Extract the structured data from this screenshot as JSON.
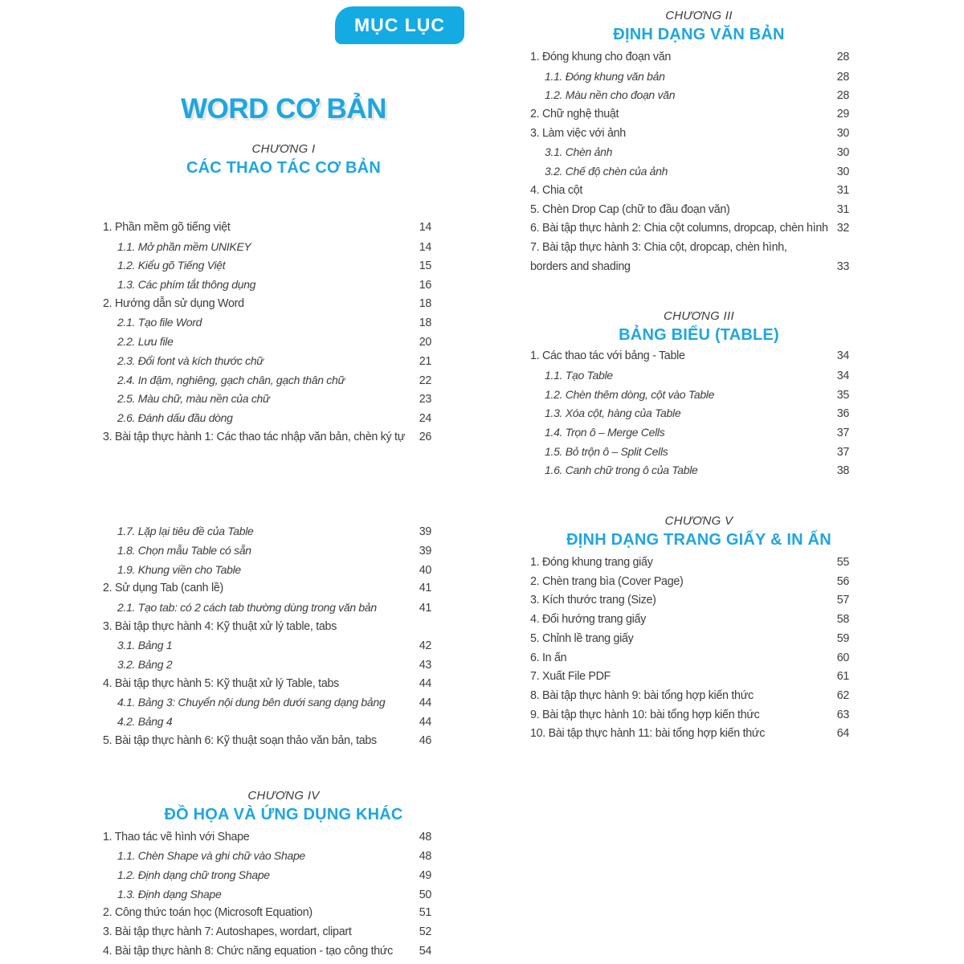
{
  "badge": {
    "label": "MỤC LỤC"
  },
  "title": "WORD CƠ BẢN",
  "colors": {
    "accent": "#1fa6de",
    "badge_bg": "#14abe3",
    "text": "#3d3d3d"
  },
  "sections": [
    {
      "id": "ch1",
      "column": "left",
      "chapter": "CHƯƠNG I",
      "heading": "CÁC THAO TÁC CƠ BẢN",
      "items": [
        {
          "level": 1,
          "label": "1. Phần mềm gõ tiếng việt",
          "page": "14"
        },
        {
          "level": 2,
          "label": "1.1. Mở phần mềm UNIKEY",
          "page": "14"
        },
        {
          "level": 2,
          "label": "1.2. Kiểu gõ Tiếng Việt",
          "page": "15"
        },
        {
          "level": 2,
          "label": "1.3. Các phím tắt thông dụng",
          "page": "16"
        },
        {
          "level": 1,
          "label": "2. Hướng dẫn sử dụng Word",
          "page": "18"
        },
        {
          "level": 2,
          "label": "2.1. Tạo file Word",
          "page": "18"
        },
        {
          "level": 2,
          "label": "2.2. Lưu file",
          "page": "20"
        },
        {
          "level": 2,
          "label": "2.3. Đổi font và kích thước chữ",
          "page": "21"
        },
        {
          "level": 2,
          "label": "2.4. In đậm, nghiêng, gạch chân, gạch thân chữ",
          "page": "22"
        },
        {
          "level": 2,
          "label": "2.5. Màu chữ, màu nền của chữ",
          "page": "23"
        },
        {
          "level": 2,
          "label": "2.6. Đánh dấu đầu dòng",
          "page": "24"
        },
        {
          "level": 1,
          "label": "3. Bài tập thực hành 1: Các thao tác nhập văn bản, chèn ký tự",
          "page": "26"
        }
      ]
    },
    {
      "id": "ch1b",
      "column": "left",
      "chapter": "",
      "heading": "",
      "items": [
        {
          "level": 2,
          "label": "1.7. Lặp lại tiêu đề của Table",
          "page": "39"
        },
        {
          "level": 2,
          "label": "1.8. Chọn mẫu Table có sẵn",
          "page": "39"
        },
        {
          "level": 2,
          "label": "1.9. Khung viền cho Table",
          "page": "40"
        },
        {
          "level": 1,
          "label": "2. Sử dụng Tab (canh lề)",
          "page": "41"
        },
        {
          "level": 2,
          "label": "2.1. Tạo tab: có 2 cách tab thường dùng trong văn bản",
          "page": "41"
        },
        {
          "level": 1,
          "label": "3. Bài tập thực hành 4: Kỹ thuật xử lý table, tabs",
          "page": ""
        },
        {
          "level": 2,
          "label": "3.1. Bảng 1",
          "page": "42"
        },
        {
          "level": 2,
          "label": "3.2. Bảng 2",
          "page": "43"
        },
        {
          "level": 1,
          "label": "4. Bài tập thực hành 5: Kỹ thuật xử lý Table, tabs",
          "page": "44"
        },
        {
          "level": 2,
          "label": "4.1. Bảng 3: Chuyển nội dung bên dưới sang dạng bảng",
          "page": "44"
        },
        {
          "level": 2,
          "label": "4.2. Bảng 4",
          "page": "44"
        },
        {
          "level": 1,
          "label": "5. Bài tập thực hành 6: Kỹ thuật soạn thảo văn bản, tabs",
          "page": "46"
        }
      ]
    },
    {
      "id": "ch4",
      "column": "left",
      "chapter": "CHƯƠNG IV",
      "heading": "ĐỒ HỌA VÀ ỨNG DỤNG KHÁC",
      "items": [
        {
          "level": 1,
          "label": "1. Thao tác vẽ hình với Shape",
          "page": "48"
        },
        {
          "level": 2,
          "label": "1.1. Chèn Shape và ghi chữ vào Shape",
          "page": "48"
        },
        {
          "level": 2,
          "label": "1.2. Định dạng chữ trong Shape",
          "page": "49"
        },
        {
          "level": 2,
          "label": "1.3. Định dạng Shape",
          "page": "50"
        },
        {
          "level": 1,
          "label": "2. Công thức toán học (Microsoft Equation)",
          "page": "51"
        },
        {
          "level": 1,
          "label": "3. Bài tập thực hành 7: Autoshapes, wordart, clipart",
          "page": "52"
        },
        {
          "level": 1,
          "label": "4. Bài tập thực hành 8: Chức năng equation - tạo công thức",
          "page": "54"
        }
      ]
    },
    {
      "id": "ch2",
      "column": "right",
      "chapter": "CHƯƠNG II",
      "heading": "ĐỊNH DẠNG VĂN BẢN",
      "items": [
        {
          "level": 1,
          "label": "1. Đóng khung cho đoạn văn",
          "page": "28"
        },
        {
          "level": 2,
          "label": "1.1. Đóng khung văn bản",
          "page": "28"
        },
        {
          "level": 2,
          "label": "1.2. Màu nền cho đoạn văn",
          "page": "28"
        },
        {
          "level": 1,
          "label": "2. Chữ nghệ thuật",
          "page": "29"
        },
        {
          "level": 1,
          "label": "3. Làm việc với ảnh",
          "page": "30"
        },
        {
          "level": 2,
          "label": "3.1. Chèn ảnh",
          "page": "30"
        },
        {
          "level": 2,
          "label": "3.2. Chế độ chèn của ảnh",
          "page": "30"
        },
        {
          "level": 1,
          "label": "4. Chia cột",
          "page": "31"
        },
        {
          "level": 1,
          "label": "5. Chèn Drop Cap (chữ to đầu đoạn văn)",
          "page": "31"
        },
        {
          "level": 1,
          "label": "6. Bài tập thực hành 2: Chia cột columns, dropcap, chèn hình",
          "page": "32"
        },
        {
          "level": 1,
          "label": "7. Bài tập thực hành 3: Chia cột, dropcap, chèn hình,",
          "label2": "borders and shading",
          "page": "33"
        }
      ]
    },
    {
      "id": "ch3",
      "column": "right",
      "chapter": "CHƯƠNG III",
      "heading": "BẢNG BIỂU (TABLE)",
      "items": [
        {
          "level": 1,
          "label": "1. Các thao tác với bảng - Table",
          "page": "34"
        },
        {
          "level": 2,
          "label": "1.1. Tạo Table",
          "page": "34"
        },
        {
          "level": 2,
          "label": "1.2. Chèn thêm dòng, cột vào Table",
          "page": "35"
        },
        {
          "level": 2,
          "label": "1.3. Xóa cột, hàng của Table",
          "page": "36"
        },
        {
          "level": 2,
          "label": "1.4. Trọn ô – Merge Cells",
          "page": "37"
        },
        {
          "level": 2,
          "label": "1.5. Bỏ trộn ô – Split Cells",
          "page": "37"
        },
        {
          "level": 2,
          "label": "1.6. Canh chữ trong ô của Table",
          "page": "38"
        }
      ]
    },
    {
      "id": "ch5",
      "column": "right",
      "chapter": "CHƯƠNG V",
      "heading": "ĐỊNH DẠNG TRANG GIẤY & IN ẤN",
      "items": [
        {
          "level": 1,
          "label": "1. Đóng khung trang giấy",
          "page": "55"
        },
        {
          "level": 1,
          "label": "2. Chèn trang bìa (Cover Page)",
          "page": "56"
        },
        {
          "level": 1,
          "label": "3. Kích thước trang (Size)",
          "page": "57"
        },
        {
          "level": 1,
          "label": "4. Đổi hướng trang giấy",
          "page": "58"
        },
        {
          "level": 1,
          "label": "5. Chỉnh lề trang giấy",
          "page": "59"
        },
        {
          "level": 1,
          "label": "6. In ấn",
          "page": "60"
        },
        {
          "level": 1,
          "label": "7. Xuất File PDF",
          "page": "61"
        },
        {
          "level": 1,
          "label": "8. Bài tập thực hành 9: bài tổng hợp kiến thức",
          "page": "62"
        },
        {
          "level": 1,
          "label": "9. Bài tập thực hành 10: bài tổng hợp kiến thức",
          "page": "63"
        },
        {
          "level": 1,
          "label": "10. Bài tập thực hành 11: bài tổng hợp kiến thức",
          "page": "64"
        }
      ]
    }
  ]
}
